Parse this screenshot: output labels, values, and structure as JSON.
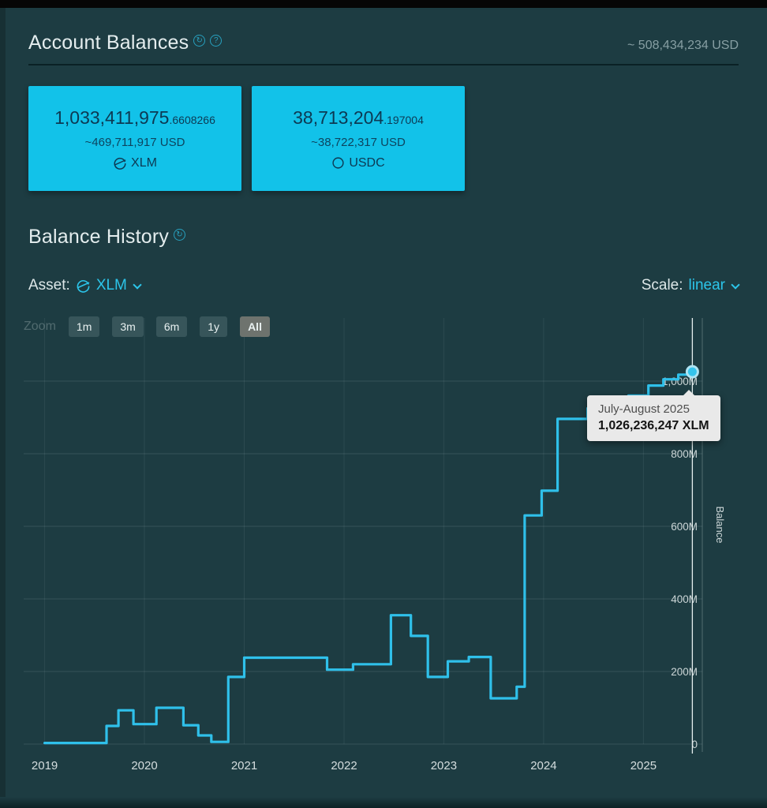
{
  "header": {
    "title": "Account Balances",
    "total_usd": "~ 508,434,234 USD"
  },
  "cards": [
    {
      "amount_int": "1,033,411,975",
      "amount_frac": ".6608266",
      "usd": "~469,711,917 USD",
      "asset": "XLM"
    },
    {
      "amount_int": "38,713,204",
      "amount_frac": ".197004",
      "usd": "~38,722,317 USD",
      "asset": "USDC"
    }
  ],
  "history": {
    "title": "Balance History",
    "asset_label": "Asset:",
    "asset_value": "XLM",
    "scale_label": "Scale:",
    "scale_value": "linear"
  },
  "zoom": {
    "label": "Zoom",
    "options": [
      "1m",
      "3m",
      "6m",
      "1y",
      "All"
    ],
    "selected": "All"
  },
  "tooltip": {
    "period": "July-August 2025",
    "value": "1,026,236,247 XLM"
  },
  "colors": {
    "accent": "#2cc5ea",
    "card_bg": "#12c2e9",
    "line": "#2fc0ea",
    "crosshair": "#e6efef",
    "grid": "rgba(140,165,168,0.22)",
    "axis_text": "#ccd6d7"
  },
  "chart_data": {
    "type": "line",
    "step": true,
    "title": "",
    "ylabel": "Balance",
    "unit": "M XLM",
    "xlim": [
      2018.79,
      2025.59
    ],
    "ylim_m": [
      0,
      1174
    ],
    "x_ticks": [
      2019,
      2020,
      2021,
      2022,
      2023,
      2024,
      2025
    ],
    "y_ticks": [
      {
        "v": 0,
        "label": "0"
      },
      {
        "v": 200,
        "label": "200M"
      },
      {
        "v": 400,
        "label": "400M"
      },
      {
        "v": 600,
        "label": "600M"
      },
      {
        "v": 800,
        "label": "800M"
      },
      {
        "v": 1000,
        "label": "1,000M"
      }
    ],
    "series": [
      {
        "name": "XLM Balance",
        "points": [
          [
            2019.0,
            3
          ],
          [
            2019.62,
            3
          ],
          [
            2019.62,
            50
          ],
          [
            2019.74,
            50
          ],
          [
            2019.74,
            93
          ],
          [
            2019.89,
            93
          ],
          [
            2019.89,
            55
          ],
          [
            2020.12,
            55
          ],
          [
            2020.12,
            100
          ],
          [
            2020.39,
            100
          ],
          [
            2020.39,
            52
          ],
          [
            2020.54,
            52
          ],
          [
            2020.54,
            24
          ],
          [
            2020.67,
            24
          ],
          [
            2020.67,
            6
          ],
          [
            2020.84,
            6
          ],
          [
            2020.84,
            185
          ],
          [
            2021.0,
            185
          ],
          [
            2021.0,
            238
          ],
          [
            2021.83,
            238
          ],
          [
            2021.83,
            205
          ],
          [
            2022.09,
            205
          ],
          [
            2022.09,
            220
          ],
          [
            2022.47,
            220
          ],
          [
            2022.47,
            355
          ],
          [
            2022.67,
            355
          ],
          [
            2022.67,
            298
          ],
          [
            2022.84,
            298
          ],
          [
            2022.84,
            185
          ],
          [
            2023.04,
            185
          ],
          [
            2023.04,
            228
          ],
          [
            2023.25,
            228
          ],
          [
            2023.25,
            240
          ],
          [
            2023.47,
            240
          ],
          [
            2023.47,
            126
          ],
          [
            2023.73,
            126
          ],
          [
            2023.73,
            158
          ],
          [
            2023.81,
            158
          ],
          [
            2023.81,
            630
          ],
          [
            2023.98,
            630
          ],
          [
            2023.98,
            698
          ],
          [
            2024.14,
            698
          ],
          [
            2024.14,
            896
          ],
          [
            2024.44,
            896
          ],
          [
            2024.44,
            925
          ],
          [
            2024.85,
            925
          ],
          [
            2024.85,
            960
          ],
          [
            2025.05,
            960
          ],
          [
            2025.05,
            988
          ],
          [
            2025.2,
            988
          ],
          [
            2025.2,
            1005
          ],
          [
            2025.35,
            1005
          ],
          [
            2025.35,
            1018
          ],
          [
            2025.49,
            1018
          ],
          [
            2025.49,
            1026
          ]
        ]
      }
    ],
    "marker": {
      "x": 2025.49,
      "y": 1026
    }
  }
}
